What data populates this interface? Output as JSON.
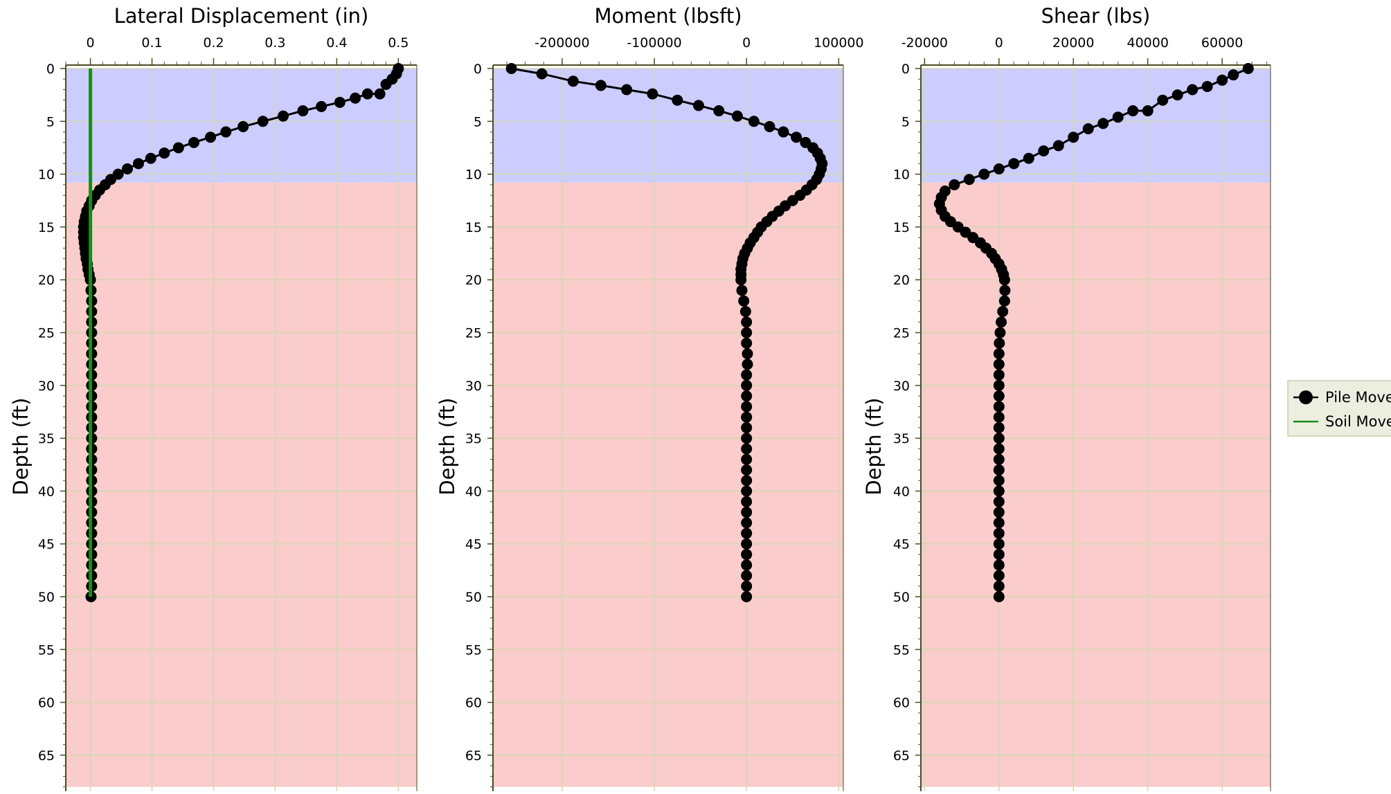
{
  "chart_data": [
    {
      "type": "line",
      "title": "Lateral Displacement (in)",
      "xlabel": "Lateral Displacement (in)",
      "ylabel": "Depth (ft)",
      "xlim": [
        -0.04,
        0.53
      ],
      "ylim": [
        0,
        68
      ],
      "y_inverted": true,
      "x_ticks": [
        0,
        0.1,
        0.2,
        0.3,
        0.4,
        0.5
      ],
      "x_tick_labels": [
        "0",
        "0.1",
        "0.2",
        "0.3",
        "0.4",
        "0.5"
      ],
      "y_ticks": [
        0,
        5,
        10,
        15,
        20,
        25,
        30,
        35,
        40,
        45,
        50,
        55,
        60,
        65
      ],
      "y_tick_labels": [
        "0",
        "5",
        "10",
        "15",
        "20",
        "25",
        "30",
        "35",
        "40",
        "45",
        "50",
        "55",
        "60",
        "65"
      ],
      "grid": true,
      "bands": [
        {
          "from": 0,
          "to": 10.8,
          "color": "#ccccff"
        },
        {
          "from": 10.8,
          "to": 68,
          "color": "#facccc"
        }
      ],
      "series": [
        {
          "name": "Pile Movement",
          "color": "#000000",
          "marker": "circle",
          "points": [
            [
              0.5,
              0
            ],
            [
              0.497,
              0.5
            ],
            [
              0.49,
              1
            ],
            [
              0.48,
              1.5
            ],
            [
              0.47,
              2.4
            ],
            [
              0.45,
              2.4
            ],
            [
              0.43,
              2.8
            ],
            [
              0.405,
              3.2
            ],
            [
              0.375,
              3.6
            ],
            [
              0.345,
              4
            ],
            [
              0.313,
              4.5
            ],
            [
              0.28,
              5
            ],
            [
              0.248,
              5.5
            ],
            [
              0.22,
              6
            ],
            [
              0.195,
              6.5
            ],
            [
              0.168,
              7
            ],
            [
              0.143,
              7.5
            ],
            [
              0.12,
              8
            ],
            [
              0.098,
              8.5
            ],
            [
              0.078,
              9
            ],
            [
              0.06,
              9.5
            ],
            [
              0.045,
              10
            ],
            [
              0.033,
              10.5
            ],
            [
              0.024,
              11
            ],
            [
              0.015,
              11.5
            ],
            [
              0.008,
              12
            ],
            [
              0.002,
              12.5
            ],
            [
              -0.002,
              13
            ],
            [
              -0.006,
              13.5
            ],
            [
              -0.008,
              14
            ],
            [
              -0.01,
              14.5
            ],
            [
              -0.011,
              15
            ],
            [
              -0.011,
              15.5
            ],
            [
              -0.011,
              16
            ],
            [
              -0.01,
              16.5
            ],
            [
              -0.009,
              17
            ],
            [
              -0.008,
              17.5
            ],
            [
              -0.007,
              18
            ],
            [
              -0.005,
              18.5
            ],
            [
              -0.004,
              19
            ],
            [
              -0.002,
              19.5
            ],
            [
              0,
              20
            ],
            [
              0.001,
              21
            ],
            [
              0.002,
              22
            ],
            [
              0.002,
              23
            ],
            [
              0.002,
              24
            ],
            [
              0.002,
              25
            ],
            [
              0.002,
              26
            ],
            [
              0.002,
              27
            ],
            [
              0.002,
              28
            ],
            [
              0.002,
              29
            ],
            [
              0.002,
              30
            ],
            [
              0.002,
              31
            ],
            [
              0.002,
              32
            ],
            [
              0.002,
              33
            ],
            [
              0.002,
              34
            ],
            [
              0.002,
              35
            ],
            [
              0.002,
              36
            ],
            [
              0.002,
              37
            ],
            [
              0.002,
              38
            ],
            [
              0.002,
              39
            ],
            [
              0.002,
              40
            ],
            [
              0.002,
              41
            ],
            [
              0.002,
              42
            ],
            [
              0.002,
              43
            ],
            [
              0.002,
              44
            ],
            [
              0.002,
              45
            ],
            [
              0.002,
              46
            ],
            [
              0.002,
              47
            ],
            [
              0.002,
              48
            ],
            [
              0.002,
              49
            ],
            [
              0.001,
              50
            ]
          ]
        },
        {
          "name": "Soil Movement",
          "color": "#1a8a1a",
          "marker": "none",
          "points": [
            [
              0,
              0
            ],
            [
              0,
              50
            ]
          ]
        }
      ]
    },
    {
      "type": "line",
      "title": "Moment (lbsft)",
      "xlabel": "Moment (lbsft)",
      "ylabel": "Depth (ft)",
      "xlim": [
        -275000,
        105000
      ],
      "ylim": [
        0,
        68
      ],
      "y_inverted": true,
      "x_ticks": [
        -200000,
        -100000,
        0,
        100000
      ],
      "x_tick_labels": [
        "-200000",
        "-100000",
        "0",
        "100000"
      ],
      "y_ticks": [
        0,
        5,
        10,
        15,
        20,
        25,
        30,
        35,
        40,
        45,
        50,
        55,
        60,
        65
      ],
      "y_tick_labels": [
        "0",
        "5",
        "10",
        "15",
        "20",
        "25",
        "30",
        "35",
        "40",
        "45",
        "50",
        "55",
        "60",
        "65"
      ],
      "grid": true,
      "bands": [
        {
          "from": 0,
          "to": 10.8,
          "color": "#ccccff"
        },
        {
          "from": 10.8,
          "to": 68,
          "color": "#facccc"
        }
      ],
      "series": [
        {
          "name": "Pile Movement",
          "color": "#000000",
          "marker": "circle",
          "points": [
            [
              -255000,
              0
            ],
            [
              -222000,
              0.5
            ],
            [
              -188000,
              1.2
            ],
            [
              -158000,
              1.6
            ],
            [
              -130000,
              2
            ],
            [
              -102000,
              2.4
            ],
            [
              -75000,
              3
            ],
            [
              -52000,
              3.5
            ],
            [
              -30000,
              4
            ],
            [
              -10000,
              4.5
            ],
            [
              8000,
              5
            ],
            [
              25000,
              5.5
            ],
            [
              40000,
              6
            ],
            [
              54000,
              6.5
            ],
            [
              64000,
              7
            ],
            [
              72000,
              7.5
            ],
            [
              77000,
              8
            ],
            [
              80000,
              8.5
            ],
            [
              82000,
              9
            ],
            [
              81000,
              9.5
            ],
            [
              79000,
              10
            ],
            [
              76000,
              10.5
            ],
            [
              71000,
              11
            ],
            [
              65000,
              11.5
            ],
            [
              58000,
              12
            ],
            [
              50000,
              12.5
            ],
            [
              42000,
              13
            ],
            [
              35000,
              13.5
            ],
            [
              28000,
              14
            ],
            [
              22000,
              14.5
            ],
            [
              16000,
              15
            ],
            [
              12000,
              15.5
            ],
            [
              8000,
              16
            ],
            [
              4000,
              16.5
            ],
            [
              1000,
              17
            ],
            [
              -2000,
              17.5
            ],
            [
              -4000,
              18
            ],
            [
              -5000,
              18.5
            ],
            [
              -6000,
              19
            ],
            [
              -6000,
              19.5
            ],
            [
              -6000,
              20
            ],
            [
              -5000,
              21
            ],
            [
              -3000,
              22
            ],
            [
              -1000,
              23
            ],
            [
              0,
              24
            ],
            [
              0,
              25
            ],
            [
              0,
              26
            ],
            [
              1000,
              27
            ],
            [
              1000,
              28
            ],
            [
              0,
              29
            ],
            [
              0,
              30
            ],
            [
              0,
              31
            ],
            [
              0,
              32
            ],
            [
              0,
              33
            ],
            [
              0,
              34
            ],
            [
              0,
              35
            ],
            [
              0,
              36
            ],
            [
              0,
              37
            ],
            [
              0,
              38
            ],
            [
              0,
              39
            ],
            [
              0,
              40
            ],
            [
              0,
              41
            ],
            [
              0,
              42
            ],
            [
              0,
              43
            ],
            [
              0,
              44
            ],
            [
              0,
              45
            ],
            [
              0,
              46
            ],
            [
              0,
              47
            ],
            [
              0,
              48
            ],
            [
              0,
              49
            ],
            [
              0,
              50
            ]
          ]
        }
      ]
    },
    {
      "type": "line",
      "title": "Shear (lbs)",
      "xlabel": "Shear (lbs)",
      "ylabel": "Depth (ft)",
      "xlim": [
        -21000,
        73000
      ],
      "ylim": [
        0,
        68
      ],
      "y_inverted": true,
      "x_ticks": [
        -20000,
        0,
        20000,
        40000,
        60000
      ],
      "x_tick_labels": [
        "-20000",
        "0",
        "20000",
        "40000",
        "60000"
      ],
      "y_ticks": [
        0,
        5,
        10,
        15,
        20,
        25,
        30,
        35,
        40,
        45,
        50,
        55,
        60,
        65
      ],
      "y_tick_labels": [
        "0",
        "5",
        "10",
        "15",
        "20",
        "25",
        "30",
        "35",
        "40",
        "45",
        "50",
        "55",
        "60",
        "65"
      ],
      "grid": true,
      "bands": [
        {
          "from": 0,
          "to": 10.8,
          "color": "#ccccff"
        },
        {
          "from": 10.8,
          "to": 68,
          "color": "#facccc"
        }
      ],
      "series": [
        {
          "name": "Pile Movement",
          "color": "#000000",
          "marker": "circle",
          "points": [
            [
              67000,
              0
            ],
            [
              63000,
              0.6
            ],
            [
              60000,
              1.1
            ],
            [
              56000,
              1.7
            ],
            [
              52000,
              2
            ],
            [
              48000,
              2.5
            ],
            [
              44000,
              3
            ],
            [
              40000,
              4
            ],
            [
              36000,
              4
            ],
            [
              32000,
              4.6
            ],
            [
              28000,
              5.2
            ],
            [
              24000,
              5.7
            ],
            [
              20000,
              6.5
            ],
            [
              16000,
              7.3
            ],
            [
              12000,
              7.8
            ],
            [
              8000,
              8.5
            ],
            [
              4000,
              9
            ],
            [
              0,
              9.5
            ],
            [
              -4000,
              10
            ],
            [
              -8000,
              10.5
            ],
            [
              -12000,
              11
            ],
            [
              -14500,
              11.6
            ],
            [
              -15500,
              12.2
            ],
            [
              -16000,
              12.8
            ],
            [
              -15500,
              13.4
            ],
            [
              -14500,
              14
            ],
            [
              -13000,
              14.5
            ],
            [
              -11000,
              15
            ],
            [
              -9000,
              15.5
            ],
            [
              -7000,
              16
            ],
            [
              -5000,
              16.5
            ],
            [
              -3500,
              17
            ],
            [
              -2000,
              17.5
            ],
            [
              -1000,
              18
            ],
            [
              0,
              18.5
            ],
            [
              700,
              19
            ],
            [
              1200,
              19.5
            ],
            [
              1500,
              20
            ],
            [
              1600,
              21
            ],
            [
              1500,
              22
            ],
            [
              1000,
              23
            ],
            [
              600,
              24
            ],
            [
              300,
              25
            ],
            [
              100,
              26
            ],
            [
              0,
              27
            ],
            [
              0,
              28
            ],
            [
              0,
              29
            ],
            [
              0,
              30
            ],
            [
              0,
              31
            ],
            [
              0,
              32
            ],
            [
              0,
              33
            ],
            [
              0,
              34
            ],
            [
              0,
              35
            ],
            [
              0,
              36
            ],
            [
              0,
              37
            ],
            [
              0,
              38
            ],
            [
              0,
              39
            ],
            [
              0,
              40
            ],
            [
              0,
              41
            ],
            [
              0,
              42
            ],
            [
              0,
              43
            ],
            [
              0,
              44
            ],
            [
              0,
              45
            ],
            [
              0,
              46
            ],
            [
              0,
              47
            ],
            [
              0,
              48
            ],
            [
              0,
              49
            ],
            [
              0,
              50
            ]
          ]
        }
      ]
    }
  ],
  "legend": {
    "placement": "right",
    "entries": [
      {
        "label": "Pile Movement",
        "color": "#000000",
        "marker": "circle"
      },
      {
        "label": "Soil Movement",
        "color": "#1a8a1a",
        "marker": "line"
      }
    ]
  },
  "colors": {
    "band_upper": "#ccccff",
    "band_lower": "#facccc",
    "grid": "#d4d8b0",
    "axis": "#4a4a20",
    "legend_bg": "#ecefe0",
    "legend_border": "#c8cca8"
  }
}
